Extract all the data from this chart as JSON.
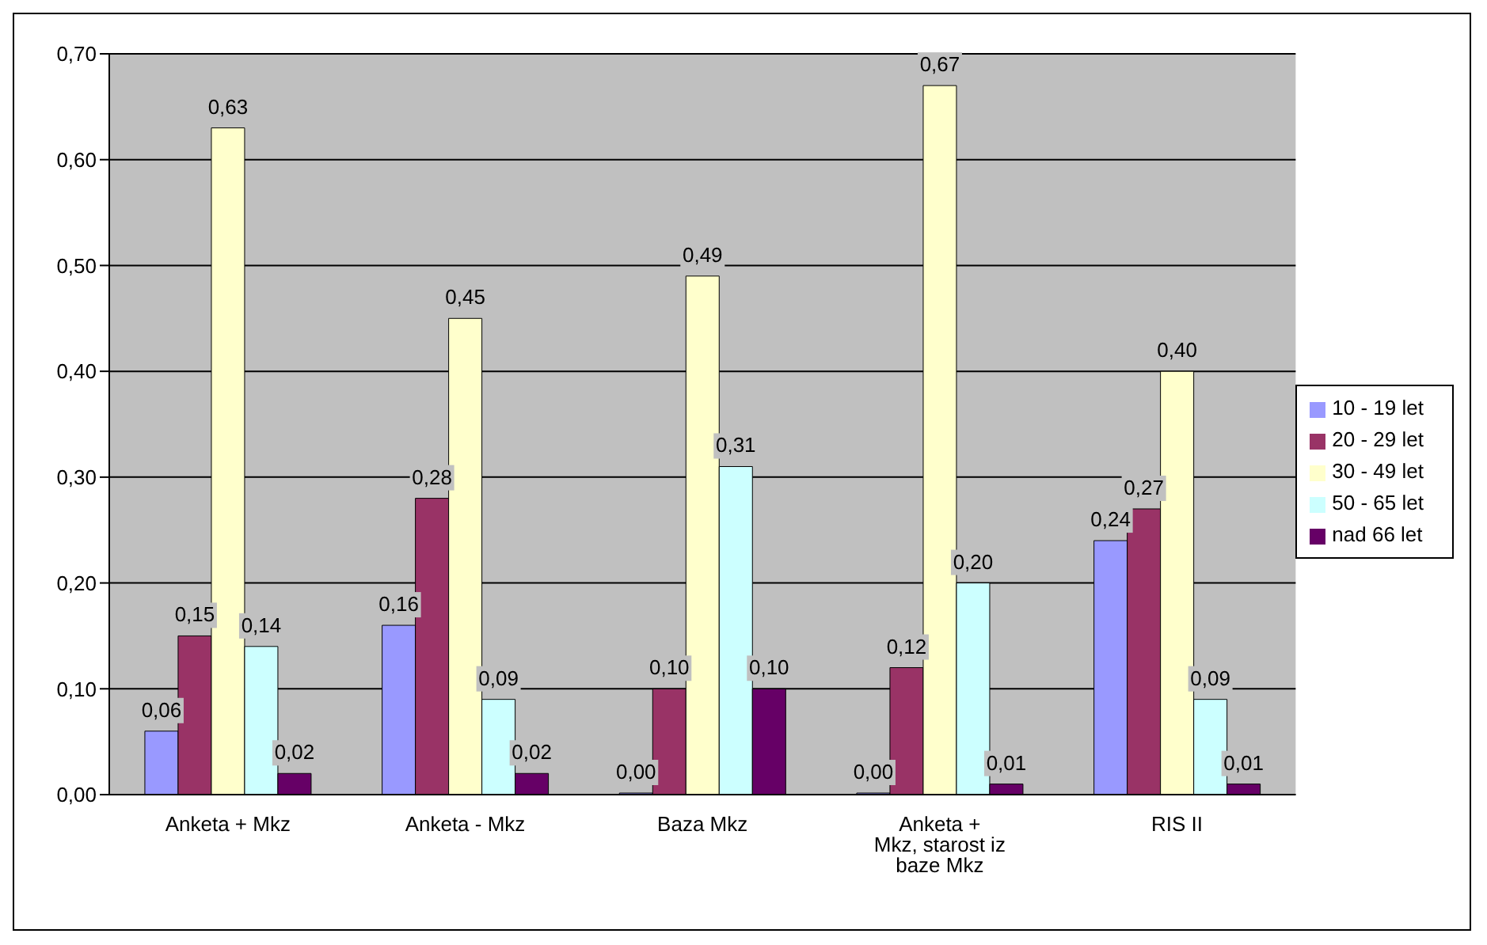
{
  "chart_data": {
    "type": "bar",
    "categories": [
      "Anketa + Mkz",
      "Anketa - Mkz",
      "Baza Mkz",
      "Anketa + Mkz, starost iz baze Mkz",
      "RIS II"
    ],
    "series": [
      {
        "name": "10 - 19 let",
        "color": "#9999ff",
        "values": [
          0.06,
          0.16,
          0.0,
          0.0,
          0.24
        ],
        "value_labels": [
          "0,06",
          "0,16",
          "0,00",
          "0,00",
          "0,24"
        ]
      },
      {
        "name": "20 - 29 let",
        "color": "#993366",
        "values": [
          0.15,
          0.28,
          0.1,
          0.12,
          0.27
        ],
        "value_labels": [
          "0,15",
          "0,28",
          "0,10",
          "0,12",
          "0,27"
        ]
      },
      {
        "name": "30 - 49 let",
        "color": "#ffffcc",
        "values": [
          0.63,
          0.45,
          0.49,
          0.67,
          0.4
        ],
        "value_labels": [
          "0,63",
          "0,45",
          "0,49",
          "0,67",
          "0,40"
        ]
      },
      {
        "name": "50 - 65 let",
        "color": "#ccffff",
        "values": [
          0.14,
          0.09,
          0.31,
          0.2,
          0.09
        ],
        "value_labels": [
          "0,14",
          "0,09",
          "0,31",
          "0,20",
          "0,09"
        ]
      },
      {
        "name": "nad 66 let",
        "color": "#660066",
        "values": [
          0.02,
          0.02,
          0.1,
          0.01,
          0.01
        ],
        "value_labels": [
          "0,02",
          "0,02",
          "0,10",
          "0,01",
          "0,01"
        ]
      }
    ],
    "ylim": [
      0,
      0.7
    ],
    "yticks": [
      {
        "value": 0,
        "label": "0,00"
      },
      {
        "value": 0.1,
        "label": "0,10"
      },
      {
        "value": 0.2,
        "label": "0,20"
      },
      {
        "value": 0.3,
        "label": "0,30"
      },
      {
        "value": 0.4,
        "label": "0,40"
      },
      {
        "value": 0.5,
        "label": "0,50"
      },
      {
        "value": 0.6,
        "label": "0,60"
      },
      {
        "value": 0.7,
        "label": "0,70"
      }
    ],
    "grid": "y",
    "legend": "right"
  }
}
